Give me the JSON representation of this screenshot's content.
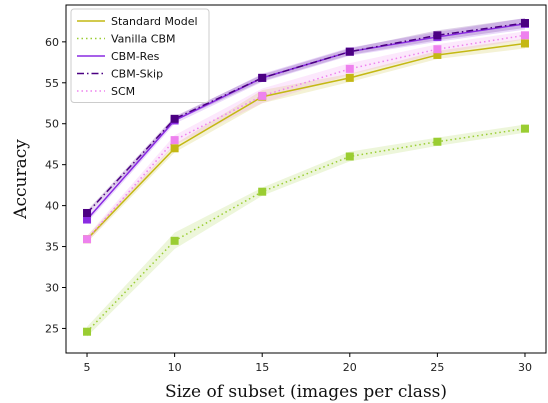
{
  "chart_data": {
    "type": "line",
    "title": "",
    "xlabel": "Size of subset (images per class)",
    "ylabel": "Accuracy",
    "x": [
      5,
      10,
      15,
      20,
      25,
      30
    ],
    "xlim": [
      3.8,
      31.2
    ],
    "ylim": [
      22,
      64.5
    ],
    "xticks": [
      5,
      10,
      15,
      20,
      25,
      30
    ],
    "yticks": [
      25,
      30,
      35,
      40,
      45,
      50,
      55,
      60
    ],
    "grid": false,
    "legend_position": "top-left",
    "series": [
      {
        "name": "Standard Model",
        "color": "#c4b814",
        "dash": "solid",
        "marker": "square",
        "values": [
          35.9,
          47.0,
          53.3,
          55.6,
          58.4,
          59.8
        ],
        "band": [
          0.4,
          0.5,
          0.8,
          0.5,
          0.5,
          0.6
        ]
      },
      {
        "name": "Vanilla CBM",
        "color": "#9acd32",
        "dash": "dotted",
        "marker": "square",
        "values": [
          24.6,
          35.7,
          41.7,
          46.0,
          47.8,
          49.4
        ],
        "band": [
          0.6,
          1.0,
          0.5,
          0.6,
          0.5,
          0.5
        ]
      },
      {
        "name": "CBM-Res",
        "color": "#8a2be2",
        "dash": "solid",
        "marker": "square",
        "values": [
          38.3,
          50.4,
          55.6,
          58.8,
          60.6,
          62.2
        ],
        "band": [
          0.4,
          0.4,
          0.5,
          0.5,
          0.6,
          0.7
        ]
      },
      {
        "name": "CBM-Skip",
        "color": "#4b0082",
        "dash": "dashdot",
        "marker": "square",
        "values": [
          39.1,
          50.6,
          55.6,
          58.8,
          60.8,
          62.3
        ],
        "band": [
          0.3,
          0.3,
          0.4,
          0.4,
          0.6,
          0.6
        ]
      },
      {
        "name": "SCM",
        "color": "#ee82ee",
        "dash": "dotted",
        "marker": "square",
        "values": [
          35.9,
          48.0,
          53.4,
          56.7,
          59.1,
          60.8
        ],
        "band": [
          0.4,
          0.6,
          0.9,
          0.7,
          0.6,
          0.5
        ]
      }
    ]
  }
}
